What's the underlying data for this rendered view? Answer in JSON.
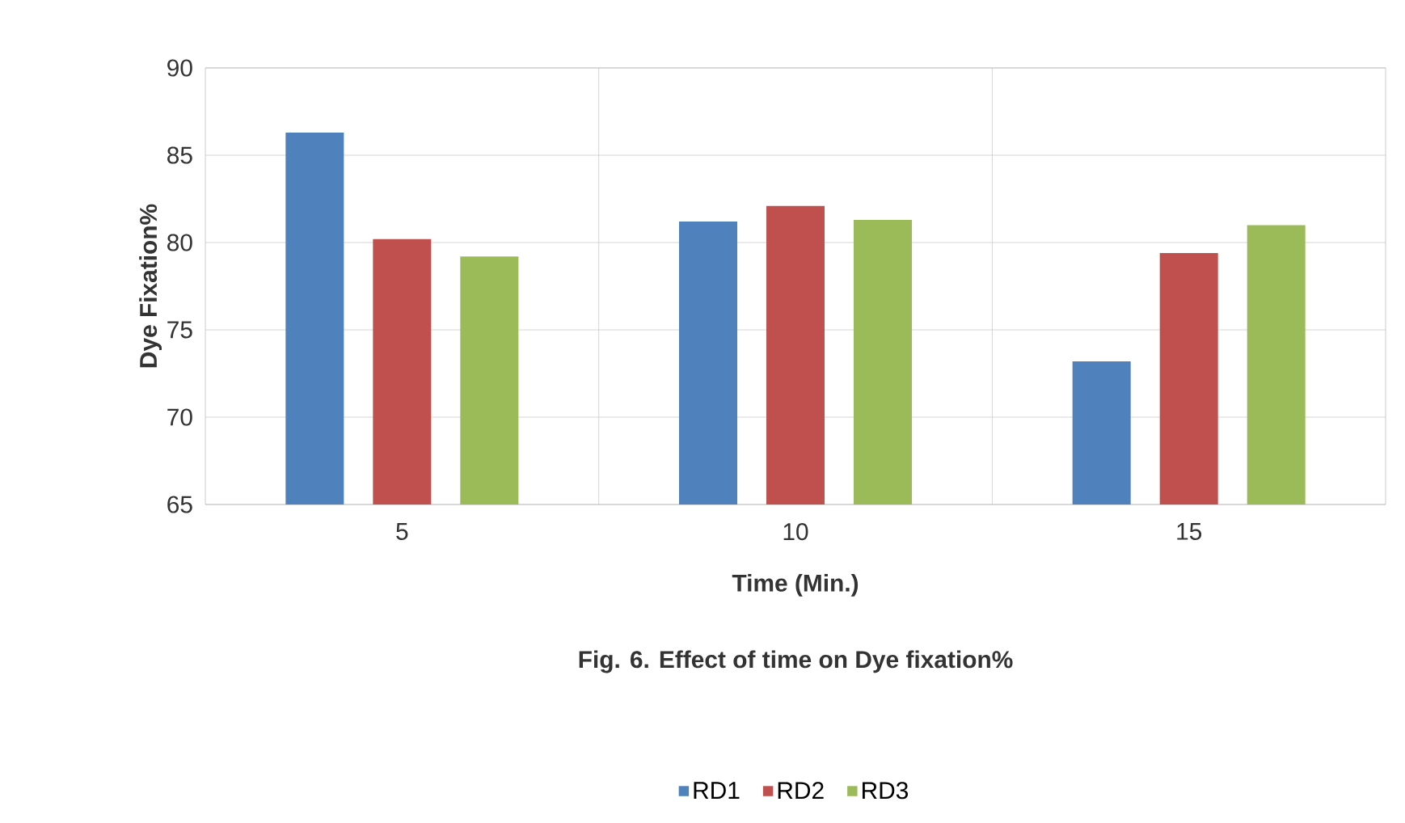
{
  "chart_data": {
    "type": "bar",
    "xlabel": "Time (Min.)",
    "ylabel": "Dye Fixation%",
    "annotations": [
      "Fig. 6. Effect of time on Dye fixation%"
    ],
    "categories": [
      "5",
      "10",
      "15"
    ],
    "series": [
      {
        "name": "RD1",
        "color": "#4f81bd",
        "values": [
          86.3,
          81.2,
          73.2
        ]
      },
      {
        "name": "RD2",
        "color": "#c0504d",
        "values": [
          80.2,
          82.1,
          79.4
        ]
      },
      {
        "name": "RD3",
        "color": "#9bbb59",
        "values": [
          79.2,
          81.3,
          81.0
        ]
      }
    ],
    "ylim": [
      65,
      90
    ],
    "yticks": [
      65,
      70,
      75,
      80,
      85,
      90
    ],
    "grid": true,
    "legend": "bottom"
  }
}
